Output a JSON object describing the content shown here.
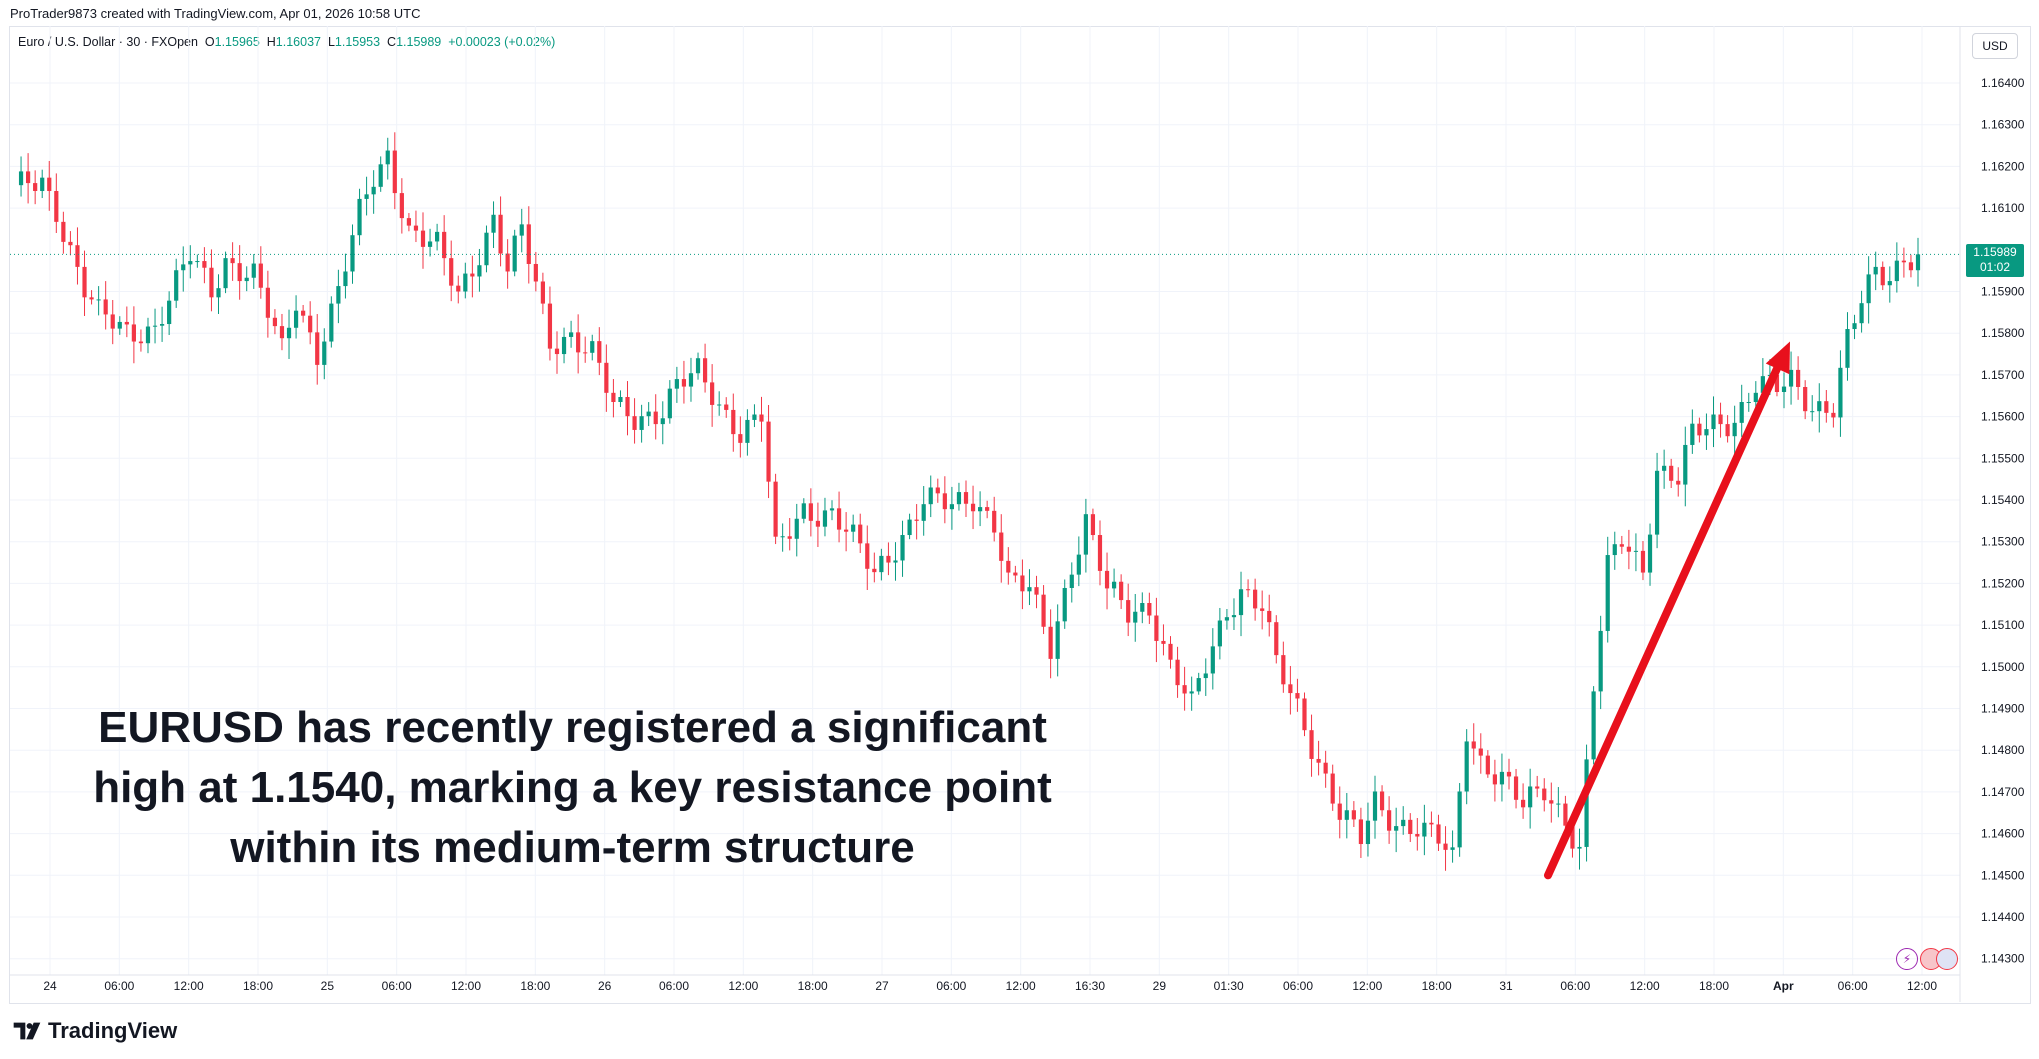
{
  "header": {
    "creator": "ProTrader9873 created with TradingView.com, Apr 01, 2026 10:58 UTC"
  },
  "legend": {
    "symbol": "Euro / U.S. Dollar · 30 · FXOpen",
    "o_label": "O",
    "o_value": "1.15965",
    "h_label": "H",
    "h_value": "1.16037",
    "l_label": "L",
    "l_value": "1.15953",
    "c_label": "C",
    "c_value": "1.15989",
    "change": "+0.00023 (+0.02%)"
  },
  "currency": "USD",
  "last_price": {
    "price": "1.15989",
    "countdown": "01:02"
  },
  "annotation": {
    "line1": "EURUSD has recently registered a significant",
    "line2": "high at 1.1540, marking a key resistance point",
    "line3": "within its medium-term structure"
  },
  "footer": {
    "brand": "TradingView"
  },
  "colors": {
    "up": "#089981",
    "down": "#f23645",
    "arrow": "#e8101c",
    "last_line": "#089981"
  },
  "chart_data": {
    "type": "candlestick",
    "title": "Euro / U.S. Dollar · 30 · FXOpen",
    "ylabel": "USD",
    "ylim": [
      1.1425,
      1.165
    ],
    "y_ticks": [
      "1.16400",
      "1.16300",
      "1.16200",
      "1.16100",
      "1.15900",
      "1.15800",
      "1.15700",
      "1.15600",
      "1.15500",
      "1.15400",
      "1.15300",
      "1.15200",
      "1.15100",
      "1.15000",
      "1.14900",
      "1.14800",
      "1.14700",
      "1.14600",
      "1.14500",
      "1.14400",
      "1.14300"
    ],
    "x_ticks": [
      "24",
      "06:00",
      "12:00",
      "18:00",
      "25",
      "06:00",
      "12:00",
      "18:00",
      "26",
      "06:00",
      "12:00",
      "18:00",
      "27",
      "06:00",
      "12:00",
      "16:30",
      "29",
      "01:30",
      "06:00",
      "12:00",
      "18:00",
      "31",
      "06:00",
      "12:00",
      "18:00",
      "Apr",
      "06:00",
      "12:00"
    ],
    "last_close": 1.15989,
    "trend_arrow": {
      "from": 1.145,
      "to": 1.1578
    },
    "anchors": [
      [
        0,
        1.1614
      ],
      [
        4,
        1.1616
      ],
      [
        6,
        1.161
      ],
      [
        10,
        1.1591
      ],
      [
        12,
        1.1584
      ],
      [
        16,
        1.158
      ],
      [
        20,
        1.1582
      ],
      [
        25,
        1.1598
      ],
      [
        28,
        1.159
      ],
      [
        30,
        1.1598
      ],
      [
        34,
        1.1594
      ],
      [
        38,
        1.1575
      ],
      [
        40,
        1.1588
      ],
      [
        43,
        1.1576
      ],
      [
        46,
        1.159
      ],
      [
        49,
        1.1608
      ],
      [
        51,
        1.1617
      ],
      [
        53,
        1.1623
      ],
      [
        56,
        1.1605
      ],
      [
        60,
        1.16
      ],
      [
        63,
        1.1589
      ],
      [
        66,
        1.16
      ],
      [
        68,
        1.1608
      ],
      [
        70,
        1.1595
      ],
      [
        72,
        1.1604
      ],
      [
        76,
        1.1578
      ],
      [
        79,
        1.158
      ],
      [
        82,
        1.1575
      ],
      [
        85,
        1.1562
      ],
      [
        88,
        1.156
      ],
      [
        92,
        1.1562
      ],
      [
        94,
        1.1567
      ],
      [
        97,
        1.157
      ],
      [
        100,
        1.1563
      ],
      [
        103,
        1.1557
      ],
      [
        106,
        1.156
      ],
      [
        108,
        1.1527
      ],
      [
        112,
        1.1538
      ],
      [
        116,
        1.1537
      ],
      [
        119,
        1.153
      ],
      [
        122,
        1.1522
      ],
      [
        126,
        1.1532
      ],
      [
        129,
        1.154
      ],
      [
        133,
        1.1538
      ],
      [
        136,
        1.1541
      ],
      [
        139,
        1.1535
      ],
      [
        141,
        1.152
      ],
      [
        144,
        1.1518
      ],
      [
        147,
        1.1505
      ],
      [
        150,
        1.1525
      ],
      [
        152,
        1.1535
      ],
      [
        155,
        1.1518
      ],
      [
        158,
        1.1513
      ],
      [
        161,
        1.1515
      ],
      [
        164,
        1.15
      ],
      [
        167,
        1.149
      ],
      [
        170,
        1.1505
      ],
      [
        172,
        1.1514
      ],
      [
        174,
        1.1519
      ],
      [
        177,
        1.1514
      ],
      [
        179,
        1.15
      ],
      [
        182,
        1.149
      ],
      [
        185,
        1.1478
      ],
      [
        188,
        1.1465
      ],
      [
        191,
        1.1458
      ],
      [
        193,
        1.1467
      ],
      [
        196,
        1.1463
      ],
      [
        199,
        1.1462
      ],
      [
        202,
        1.1458
      ],
      [
        204,
        1.1453
      ],
      [
        206,
        1.1485
      ],
      [
        208,
        1.1478
      ],
      [
        211,
        1.1474
      ],
      [
        214,
        1.1466
      ],
      [
        217,
        1.147
      ],
      [
        220,
        1.1464
      ],
      [
        222,
        1.1457
      ],
      [
        224,
        1.1495
      ],
      [
        226,
        1.1523
      ],
      [
        228,
        1.153
      ],
      [
        231,
        1.1524
      ],
      [
        233,
        1.1548
      ],
      [
        236,
        1.1545
      ],
      [
        238,
        1.1555
      ],
      [
        241,
        1.1558
      ],
      [
        244,
        1.156
      ],
      [
        247,
        1.1568
      ],
      [
        250,
        1.1566
      ],
      [
        252,
        1.1568
      ],
      [
        255,
        1.1563
      ],
      [
        258,
        1.1563
      ],
      [
        260,
        1.1578
      ],
      [
        262,
        1.1587
      ],
      [
        264,
        1.1594
      ],
      [
        266,
        1.1594
      ],
      [
        268,
        1.1599
      ],
      [
        270,
        1.1599
      ]
    ]
  }
}
